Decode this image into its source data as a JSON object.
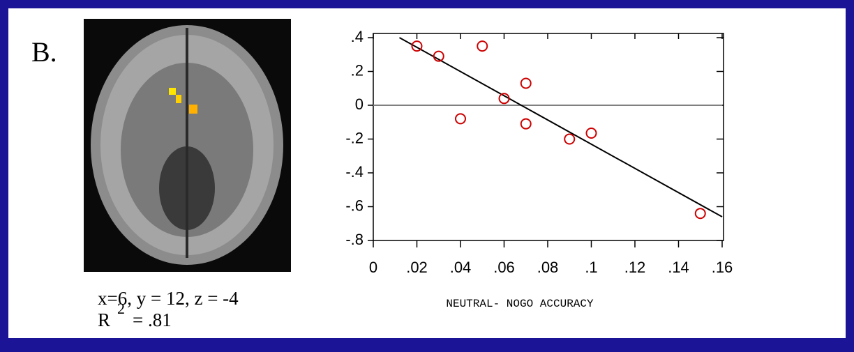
{
  "panel_label": "B.",
  "image_caption": {
    "coords": "x=6, y = 12, z = -4",
    "r2_symbol": "R",
    "r2_exponent": "2",
    "r2_value": "= .81"
  },
  "chart_data": {
    "type": "scatter",
    "x_label": "NEUTRAL- NOGO ACCURACY",
    "x": [
      0.02,
      0.03,
      0.04,
      0.05,
      0.06,
      0.07,
      0.07,
      0.09,
      0.1,
      0.15
    ],
    "values": [
      0.35,
      0.29,
      -0.08,
      0.35,
      0.04,
      0.13,
      -0.11,
      -0.2,
      -0.165,
      -0.64
    ],
    "color": "#cc0000",
    "fit": {
      "x": [
        0.012,
        0.16
      ],
      "y": [
        0.4,
        -0.66
      ],
      "color": "#000000"
    },
    "reference_line": {
      "value": 0,
      "color": "#808080"
    },
    "xlim": [
      0,
      0.16
    ],
    "ylim": [
      -0.8,
      0.4
    ],
    "xticks": [
      0,
      {
        "value": 0.02,
        "label": ".02"
      },
      {
        "value": 0.04,
        "label": ".04"
      },
      {
        "value": 0.06,
        "label": ".06"
      },
      {
        "value": 0.08,
        "label": ".08"
      },
      {
        "value": 0.1,
        "label": ".1"
      },
      {
        "value": 0.12,
        "label": ".12"
      },
      {
        "value": 0.14,
        "label": ".14"
      },
      {
        "value": 0.16,
        "label": ".16"
      }
    ],
    "yticks": [
      {
        "value": 0.4,
        "label": ".4"
      },
      {
        "value": 0.2,
        "label": ".2"
      },
      0,
      {
        "value": -0.2,
        "label": "-.2"
      },
      {
        "value": -0.4,
        "label": "-.4"
      },
      {
        "value": -0.6,
        "label": "-.6"
      },
      {
        "value": -0.8,
        "label": "-.8"
      }
    ]
  }
}
